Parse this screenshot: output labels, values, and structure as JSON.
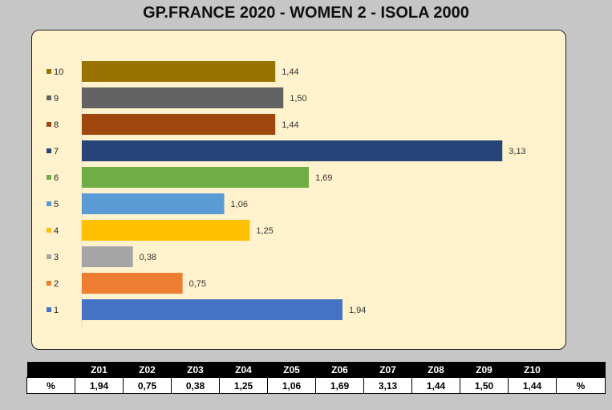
{
  "title": "GP.FRANCE 2020 - WOMEN 2 - ISOLA 2000",
  "chart_data": {
    "type": "bar",
    "orientation": "horizontal",
    "categories": [
      "1",
      "2",
      "3",
      "4",
      "5",
      "6",
      "7",
      "8",
      "9",
      "10"
    ],
    "values": [
      1.94,
      0.75,
      0.38,
      1.25,
      1.06,
      1.69,
      3.13,
      1.44,
      1.5,
      1.44
    ],
    "value_labels": [
      "1,94",
      "0,75",
      "0,38",
      "1,25",
      "1,06",
      "1,69",
      "3,13",
      "1,44",
      "1,50",
      "1,44"
    ],
    "colors": [
      "#4472c4",
      "#ed7d31",
      "#a5a5a5",
      "#ffc000",
      "#5b9bd5",
      "#70ad47",
      "#264478",
      "#9e480e",
      "#636363",
      "#997300"
    ],
    "legend_position": "left",
    "grid": false
  },
  "table": {
    "headers": [
      "",
      "Z01",
      "Z02",
      "Z03",
      "Z04",
      "Z05",
      "Z06",
      "Z07",
      "Z08",
      "Z09",
      "Z10",
      ""
    ],
    "row": [
      "%",
      "1,94",
      "0,75",
      "0,38",
      "1,25",
      "1,06",
      "1,69",
      "3,13",
      "1,44",
      "1,50",
      "1,44",
      "%"
    ]
  }
}
